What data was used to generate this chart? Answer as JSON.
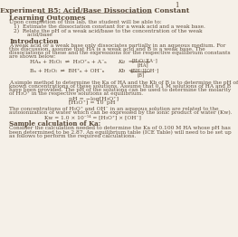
{
  "page_number": "1",
  "title": "Experiment B5: Acid/Base Dissociation Constant",
  "background": "#f5f0e8",
  "text_color": "#5a4a3a",
  "sections": {
    "learning_outcomes_header": "Learning Outcomes",
    "learning_outcomes_intro": "Upon completion of this lab, the student will be able to:",
    "lo1": "1)  Estimate the dissociation constant for a weak acid and a weak base.",
    "lo2": "2)  Relate the pH of a weak acid/base to the concentration of the weak",
    "lo2b": "        acid/base",
    "intro_header": "Introduction",
    "intro_text1": "A weak acid or a weak base only dissociates partially in an aqueous medium. For",
    "intro_text2": "this discussion, assume that HA is a weak acid and B is a weak base. The",
    "intro_text3": "dissociations of these and the expressions for the respective equilibrium constants",
    "intro_text4": "are shown below:",
    "para2_1": "A simple method to determine the Ka of HA and the Kb of B is to determine the pH of",
    "para2_2": "known concentrations of these solutions. Assume that 0.1 M solutions of HA and B",
    "para2_3": "have been provided. The pH of the solutions can be used to determine the molarity",
    "para2_4": "of H₃O⁺ in the respective solutions at equilibrium.",
    "eq3": "pH = −log[H₃O⁺]",
    "eq4": "[H₃O⁺] = 10⁻pH",
    "para3_1": "The concentrations of H₃O⁺ and OH⁻ in an aqueous solution are related to the",
    "para3_2": "autoionization of water which can be expressed by the ionic product of water (Kw).",
    "para3_3": "Kw = 1.0 × 10⁻¹⁴ = [H₃O⁺] × [OH⁻]",
    "sample_header": "Sample calculation of Ka:",
    "sample_1": "Consider the calculation needed to determine the Ka of 0.100 M HA whose pH has",
    "sample_2": "been determined to be 2.87. An equilibrium table (ICE Table) will need to be set up",
    "sample_3": "as follows to perform the required calculations."
  }
}
